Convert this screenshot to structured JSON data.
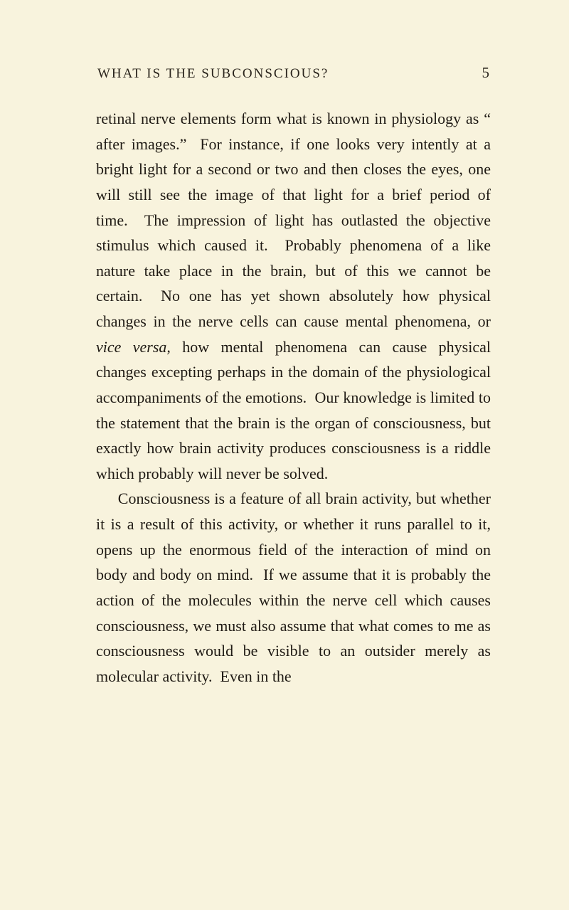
{
  "header": {
    "running_title": "WHAT IS THE SUBCONSCIOUS?",
    "page_number": "5"
  },
  "body": {
    "p1_a": "retinal nerve elements form what is known in physiology as “ after images.”  For instance, if one looks very intently at a bright light for a second or two and then closes the eyes, one will still see the image of that light for a brief period of time.  The impression of light has outlasted the objective stimulus which caused it.  Probably phenomena of a like nature take place in the brain, but of this we cannot be certain.  No one has yet shown absolutely how physical changes in the nerve cells can cause mental phenomena, or ",
    "p1_italic": "vice versa,",
    "p1_b": " how mental phenomena can cause physical changes except­ing perhaps in the domain of the physiological accompaniments of the emotions.  Our knowl­edge is limited to the statement that the brain is the organ of consciousness, but exactly how brain activity produces consciousness is a riddle which probably will never be solved.",
    "p2": "Consciousness is a feature of all brain activity, but whether it is a result of this activity, or whether it runs parallel to it, opens up the enormous field of the interaction of mind on body and body on mind.  If we assume that it is probably the action of the molecules within the nerve cell which causes consciousness, we must also assume that what comes to me as consciousness would be visible to an outsider merely as molecular activity.  Even in the"
  }
}
